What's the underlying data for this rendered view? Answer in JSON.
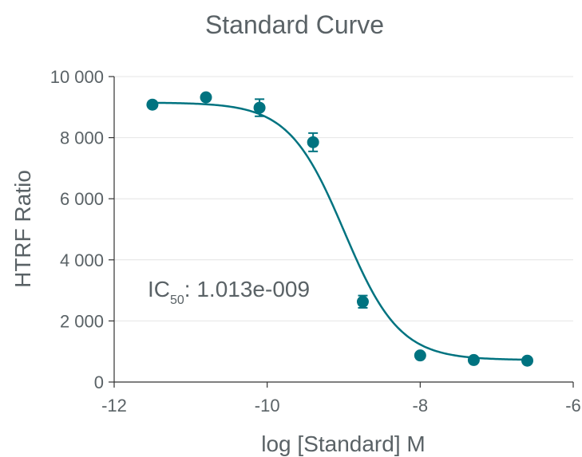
{
  "chart_data": {
    "type": "scatter",
    "title": "Standard Curve",
    "xlabel": "log [Standard] M",
    "ylabel": "HTRF Ratio",
    "xlim": [
      -12,
      -6
    ],
    "ylim": [
      0,
      10000
    ],
    "x_ticks": [
      -12,
      -10,
      -8,
      -6
    ],
    "x_tick_labels": [
      "-12",
      "-10",
      "-8",
      "-6"
    ],
    "y_ticks": [
      0,
      2000,
      4000,
      6000,
      8000,
      10000
    ],
    "y_tick_labels": [
      "0",
      "2 000",
      "4 000",
      "6 000",
      "8 000",
      "10 000"
    ],
    "grid": "horizontal",
    "color": "#007380",
    "series": [
      {
        "x": [
          -11.5,
          -10.8,
          -10.1,
          -9.4,
          -8.75,
          -8.0,
          -7.3,
          -6.6
        ],
        "y": [
          9080,
          9320,
          8980,
          7850,
          2630,
          870,
          720,
          700
        ],
        "error": [
          0,
          0,
          280,
          300,
          200,
          0,
          0,
          0
        ]
      }
    ],
    "fit": {
      "model": "4PL",
      "top": 9150,
      "bottom": 720,
      "log_ic50": -8.994,
      "hill_slope": 1.2
    },
    "annotation": {
      "main": "IC",
      "sub": "50",
      "rest": ": 1.013e-009"
    }
  }
}
